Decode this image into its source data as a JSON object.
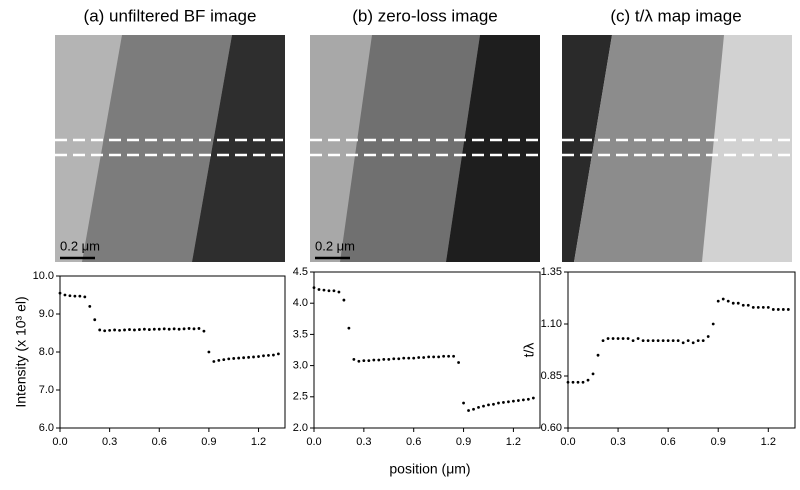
{
  "xlabel": "position (μm)",
  "chart_data": [
    {
      "type": "scatter",
      "title": "(a) unfiltered BF image",
      "scale_label": "0.2 μm",
      "ylabel": "Intensity (x 10³ el)",
      "xlim": [
        0,
        1.36
      ],
      "xticks": [
        {
          "value": 0,
          "label": "0.0"
        },
        0.3,
        0.6,
        0.9,
        1.2
      ],
      "ylim": [
        6,
        10
      ],
      "yticks": [
        {
          "value": 6,
          "label": "6.0"
        },
        {
          "value": 7,
          "label": "7.0"
        },
        {
          "value": 8,
          "label": "8.0"
        },
        {
          "value": 9,
          "label": "9.0"
        },
        {
          "value": 10,
          "label": "10.0"
        }
      ],
      "color": "#000000",
      "x": [
        0,
        0.03,
        0.06,
        0.09,
        0.12,
        0.15,
        0.18,
        0.21,
        0.24,
        0.27,
        0.3,
        0.33,
        0.36,
        0.39,
        0.42,
        0.45,
        0.48,
        0.51,
        0.54,
        0.57,
        0.6,
        0.63,
        0.66,
        0.69,
        0.72,
        0.75,
        0.78,
        0.81,
        0.84,
        0.87,
        0.9,
        0.93,
        0.96,
        0.99,
        1.02,
        1.05,
        1.08,
        1.11,
        1.14,
        1.17,
        1.2,
        1.23,
        1.26,
        1.29,
        1.32
      ],
      "values": [
        9.55,
        9.5,
        9.48,
        9.47,
        9.47,
        9.45,
        9.2,
        8.85,
        8.58,
        8.56,
        8.57,
        8.58,
        8.57,
        8.58,
        8.59,
        8.58,
        8.59,
        8.6,
        8.59,
        8.6,
        8.6,
        8.61,
        8.6,
        8.61,
        8.6,
        8.61,
        8.62,
        8.61,
        8.62,
        8.55,
        8.0,
        7.75,
        7.78,
        7.8,
        7.82,
        7.83,
        7.84,
        7.85,
        7.86,
        7.87,
        7.88,
        7.9,
        7.91,
        7.92,
        7.95
      ]
    },
    {
      "type": "scatter",
      "title": "(b) zero-loss image",
      "scale_label": "0.2 μm",
      "xlim": [
        0,
        1.36
      ],
      "xticks": [
        {
          "value": 0,
          "label": "0.0"
        },
        0.3,
        0.6,
        0.9,
        1.2
      ],
      "ylim": [
        2,
        4.5
      ],
      "yticks": [
        {
          "value": 2,
          "label": "2.0"
        },
        2.5,
        {
          "value": 3,
          "label": "3.0"
        },
        3.5,
        {
          "value": 4,
          "label": "4.0"
        },
        4.5
      ],
      "color": "#000000",
      "x": [
        0,
        0.03,
        0.06,
        0.09,
        0.12,
        0.15,
        0.18,
        0.21,
        0.24,
        0.27,
        0.3,
        0.33,
        0.36,
        0.39,
        0.42,
        0.45,
        0.48,
        0.51,
        0.54,
        0.57,
        0.6,
        0.63,
        0.66,
        0.69,
        0.72,
        0.75,
        0.78,
        0.81,
        0.84,
        0.87,
        0.9,
        0.93,
        0.96,
        0.99,
        1.02,
        1.05,
        1.08,
        1.11,
        1.14,
        1.17,
        1.2,
        1.23,
        1.26,
        1.29,
        1.32
      ],
      "values": [
        4.25,
        4.22,
        4.21,
        4.2,
        4.2,
        4.18,
        4.05,
        3.6,
        3.1,
        3.07,
        3.08,
        3.08,
        3.09,
        3.09,
        3.1,
        3.1,
        3.11,
        3.11,
        3.12,
        3.12,
        3.12,
        3.13,
        3.13,
        3.14,
        3.14,
        3.14,
        3.15,
        3.15,
        3.15,
        3.05,
        2.4,
        2.28,
        2.3,
        2.33,
        2.35,
        2.37,
        2.38,
        2.4,
        2.41,
        2.42,
        2.43,
        2.44,
        2.45,
        2.46,
        2.48
      ]
    },
    {
      "type": "scatter",
      "title": "(c) t/λ map image",
      "ylabel": "t/λ",
      "xlim": [
        0,
        1.36
      ],
      "xticks": [
        {
          "value": 0,
          "label": "0.0"
        },
        0.3,
        0.6,
        0.9,
        1.2
      ],
      "ylim": [
        0.6,
        1.35
      ],
      "yticks": [
        {
          "value": 0.6,
          "label": "0.60"
        },
        0.85,
        {
          "value": 1.1,
          "label": "1.10"
        },
        1.35
      ],
      "color": "#000000",
      "x": [
        0,
        0.03,
        0.06,
        0.09,
        0.12,
        0.15,
        0.18,
        0.21,
        0.24,
        0.27,
        0.3,
        0.33,
        0.36,
        0.39,
        0.42,
        0.45,
        0.48,
        0.51,
        0.54,
        0.57,
        0.6,
        0.63,
        0.66,
        0.69,
        0.72,
        0.75,
        0.78,
        0.81,
        0.84,
        0.87,
        0.9,
        0.93,
        0.96,
        0.99,
        1.02,
        1.05,
        1.08,
        1.11,
        1.14,
        1.17,
        1.2,
        1.23,
        1.26,
        1.29,
        1.32
      ],
      "values": [
        0.82,
        0.82,
        0.82,
        0.82,
        0.83,
        0.86,
        0.95,
        1.02,
        1.03,
        1.03,
        1.03,
        1.03,
        1.03,
        1.02,
        1.03,
        1.02,
        1.02,
        1.02,
        1.02,
        1.02,
        1.02,
        1.02,
        1.02,
        1.01,
        1.02,
        1.01,
        1.02,
        1.02,
        1.04,
        1.1,
        1.21,
        1.22,
        1.21,
        1.2,
        1.2,
        1.19,
        1.19,
        1.18,
        1.18,
        1.18,
        1.18,
        1.17,
        1.17,
        1.17,
        1.17
      ]
    }
  ]
}
